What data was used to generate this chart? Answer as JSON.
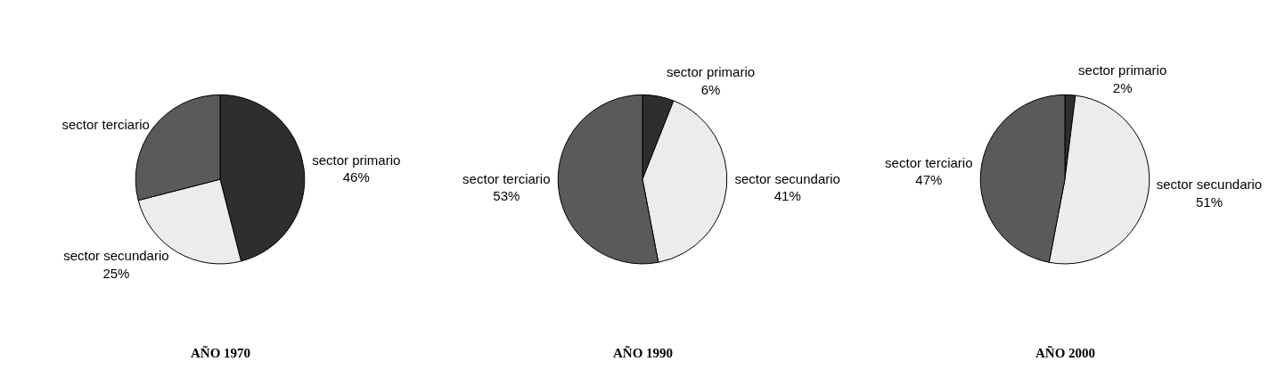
{
  "chart_data": [
    {
      "type": "pie",
      "title": "AÑO 1970",
      "categories": [
        "sector primario",
        "sector secundario",
        "sector terciario"
      ],
      "values": [
        46,
        25,
        29
      ],
      "value_labels": [
        "46%",
        "25%",
        null
      ],
      "colors": [
        "#2e2e2e",
        "#ececec",
        "#5a5a5a"
      ]
    },
    {
      "type": "pie",
      "title": "AÑO 1990",
      "categories": [
        "sector primario",
        "sector secundario",
        "sector terciario"
      ],
      "values": [
        6,
        41,
        53
      ],
      "value_labels": [
        "6%",
        "41%",
        "53%"
      ],
      "colors": [
        "#2e2e2e",
        "#ececec",
        "#5a5a5a"
      ]
    },
    {
      "type": "pie",
      "title": "AÑO 2000",
      "categories": [
        "sector primario",
        "sector secundario",
        "sector terciario"
      ],
      "values": [
        2,
        51,
        47
      ],
      "value_labels": [
        "2%",
        "51%",
        "47%"
      ],
      "colors": [
        "#2e2e2e",
        "#ececec",
        "#5a5a5a"
      ]
    }
  ]
}
